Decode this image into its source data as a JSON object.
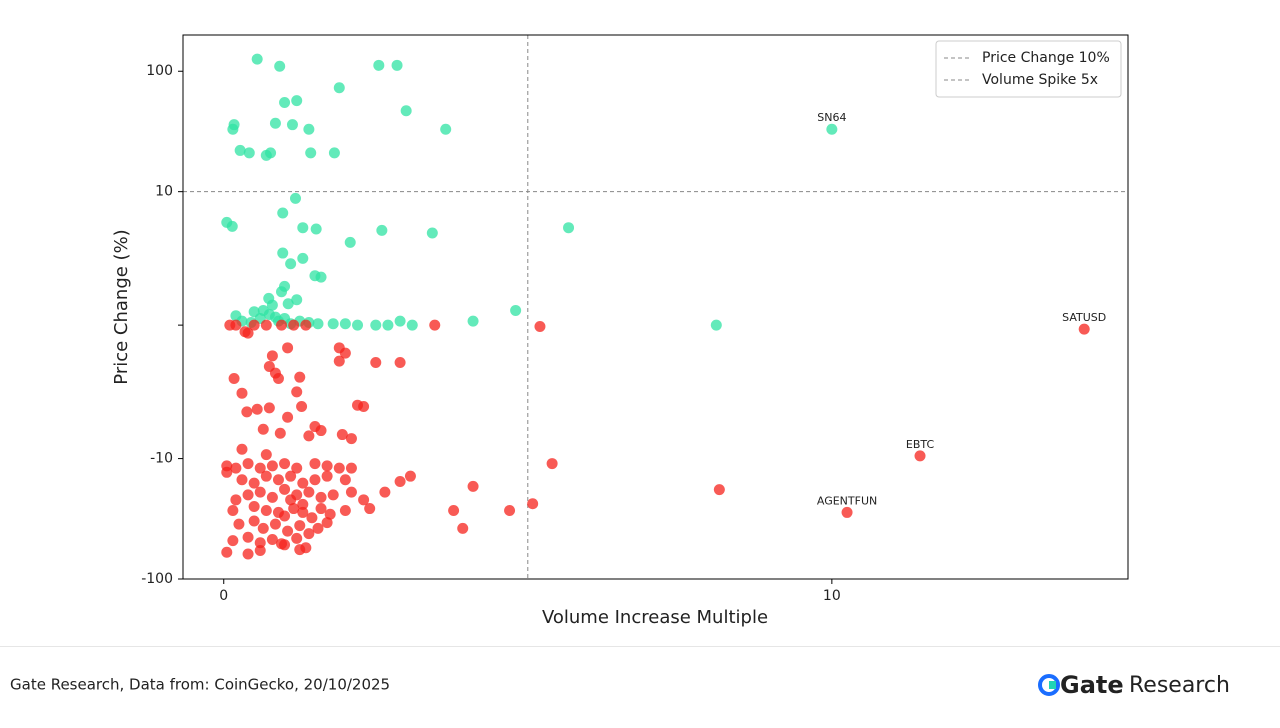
{
  "chart_data": {
    "type": "scatter",
    "x_label": "Volume Increase Multiple",
    "y_label": "Price Change (%)",
    "xlim": [
      -0.67,
      14.87
    ],
    "xticks": [
      0,
      10
    ],
    "ylim": [
      -100,
      200
    ],
    "yscale": "symlog",
    "linthresh": 10,
    "yticks": [
      -100,
      -10,
      {
        "value": 0,
        "label": null
      },
      10,
      100
    ],
    "series": [
      {
        "color": "#2fe3a3",
        "x": [
          0.55,
          0.92,
          2.55,
          2.85,
          1.0,
          1.2,
          1.9,
          3.0,
          0.85,
          1.13,
          1.4,
          0.17,
          0.15,
          3.65,
          0.27,
          0.42,
          0.7,
          0.77,
          1.43,
          1.82,
          10,
          1.18,
          0.97,
          0.05,
          0.14,
          1.3,
          1.52,
          2.6,
          3.43,
          5.67,
          2.08,
          0.97,
          1.3,
          1.1,
          1.5,
          1.6,
          1.0,
          0.95,
          1.06,
          1.2,
          0.74,
          0.65,
          0.5,
          0.8,
          4.8,
          4.1,
          8.1,
          1.8,
          2.0,
          2.2,
          2.5,
          2.7,
          2.9,
          3.1,
          0.2,
          0.3,
          0.45,
          0.6,
          0.75,
          0.9,
          1.0,
          1.1,
          1.25,
          1.4,
          1.55,
          0.85
        ],
        "values": [
          126,
          110,
          112,
          112,
          55,
          57,
          73,
          47,
          37,
          36,
          33,
          36,
          33,
          33,
          22,
          21,
          20,
          21,
          21,
          21,
          33,
          9.5,
          8.4,
          7.7,
          7.4,
          7.3,
          7.2,
          7.1,
          6.9,
          7.3,
          6.2,
          5.4,
          5.0,
          4.6,
          3.7,
          3.6,
          2.9,
          2.5,
          1.6,
          1.9,
          2.0,
          1.1,
          1.0,
          1.5,
          1.1,
          0.3,
          0,
          0.1,
          0.1,
          0,
          0,
          0,
          0.3,
          0,
          0.7,
          0.3,
          0.2,
          0.5,
          0.8,
          0.3,
          0.5,
          0.1,
          0.3,
          0.2,
          0.1,
          0.6
        ]
      },
      {
        "color": "#f5231c",
        "x": [
          0.1,
          0.2,
          0.5,
          0.7,
          0.95,
          1.15,
          1.35,
          3.47,
          5.2,
          14.15,
          0.35,
          0.4,
          1.05,
          0.8,
          1.9,
          2.0,
          1.9,
          2.5,
          2.9,
          0.75,
          0.85,
          0.9,
          0.17,
          1.25,
          1.2,
          0.3,
          0.38,
          0.55,
          0.75,
          1.05,
          1.28,
          2.2,
          2.3,
          0.65,
          0.93,
          1.6,
          1.95,
          2.1,
          1.4,
          1.5,
          5.4,
          11.45,
          2.9,
          3.07,
          4.1,
          2.65,
          3.78,
          3.93,
          4.7,
          5.08,
          8.15,
          10.25,
          0.3,
          0.7,
          0.05,
          0.05,
          0.2,
          0.4,
          0.6,
          0.8,
          1.0,
          1.2,
          1.5,
          1.7,
          1.9,
          2.1,
          0.3,
          0.5,
          0.7,
          0.9,
          1.1,
          1.3,
          1.5,
          1.7,
          2.0,
          0.4,
          0.6,
          0.8,
          1.0,
          1.1,
          1.2,
          1.3,
          1.4,
          1.6,
          1.8,
          2.1,
          2.3,
          0.2,
          0.15,
          0.5,
          0.7,
          0.9,
          1.0,
          1.15,
          1.3,
          1.45,
          1.6,
          1.75,
          2.0,
          2.4,
          0.25,
          0.5,
          0.65,
          0.85,
          1.05,
          1.25,
          1.4,
          1.55,
          1.7,
          0.15,
          0.4,
          0.6,
          0.8,
          1.0,
          1.2,
          1.35,
          0.05,
          0.4,
          0.6,
          0.95,
          1.25
        ],
        "values": [
          0,
          0,
          0,
          0,
          0,
          0,
          0,
          0,
          -0.1,
          -0.3,
          -0.5,
          -0.6,
          -1.7,
          -2.3,
          -1.7,
          -2.1,
          -2.7,
          -2.8,
          -2.8,
          -3.1,
          -3.6,
          -4.0,
          -4.0,
          -3.9,
          -5.0,
          -5.1,
          -6.5,
          -6.3,
          -6.2,
          -6.9,
          -6.1,
          -6.0,
          -6.1,
          -7.8,
          -8.1,
          -7.9,
          -8.2,
          -8.5,
          -8.3,
          -7.6,
          -11,
          -9.8,
          -15.5,
          -14,
          -17,
          -19,
          -27,
          -38,
          -27,
          -23.7,
          -18.1,
          -28,
          -9.3,
          -9.7,
          -11.5,
          -13,
          -12,
          -11,
          -12,
          -11.5,
          -11,
          -12,
          -11,
          -11.5,
          -12,
          -12,
          -15,
          -16,
          -14,
          -15,
          -14,
          -16,
          -15,
          -14,
          -15,
          -20,
          -19,
          -21,
          -18,
          -22,
          -20,
          -24,
          -19,
          -21,
          -20,
          -19,
          -22,
          -22,
          -27,
          -25,
          -27,
          -28,
          -30,
          -26,
          -28,
          -31,
          -26,
          -29,
          -27,
          -26,
          -35,
          -33,
          -38,
          -35,
          -40,
          -36,
          -42,
          -38,
          -34,
          -48,
          -45,
          -50,
          -47,
          -52,
          -46,
          -55,
          -60,
          -62,
          -58,
          -51,
          -57
        ]
      }
    ],
    "hlines": [
      {
        "value": 10,
        "label": "Price Change 10%",
        "color": "#888888"
      }
    ],
    "vlines": [
      {
        "value": 5,
        "label": "Volume Spike 5x",
        "color": "#888888"
      }
    ],
    "legend": "upper right",
    "annotations": [
      {
        "text": "SN64",
        "x": 10,
        "y": 33
      },
      {
        "text": "SATUSD",
        "x": 14.15,
        "y": -0.3
      },
      {
        "text": "EBTC",
        "x": 11.45,
        "y": -9.8
      },
      {
        "text": "AGENTFUN",
        "x": 10.25,
        "y": -28
      }
    ]
  },
  "footer": {
    "source": "Gate Research, Data from: CoinGecko, 20/10/2025",
    "brand": "Gate",
    "brand_suffix": "Research"
  }
}
